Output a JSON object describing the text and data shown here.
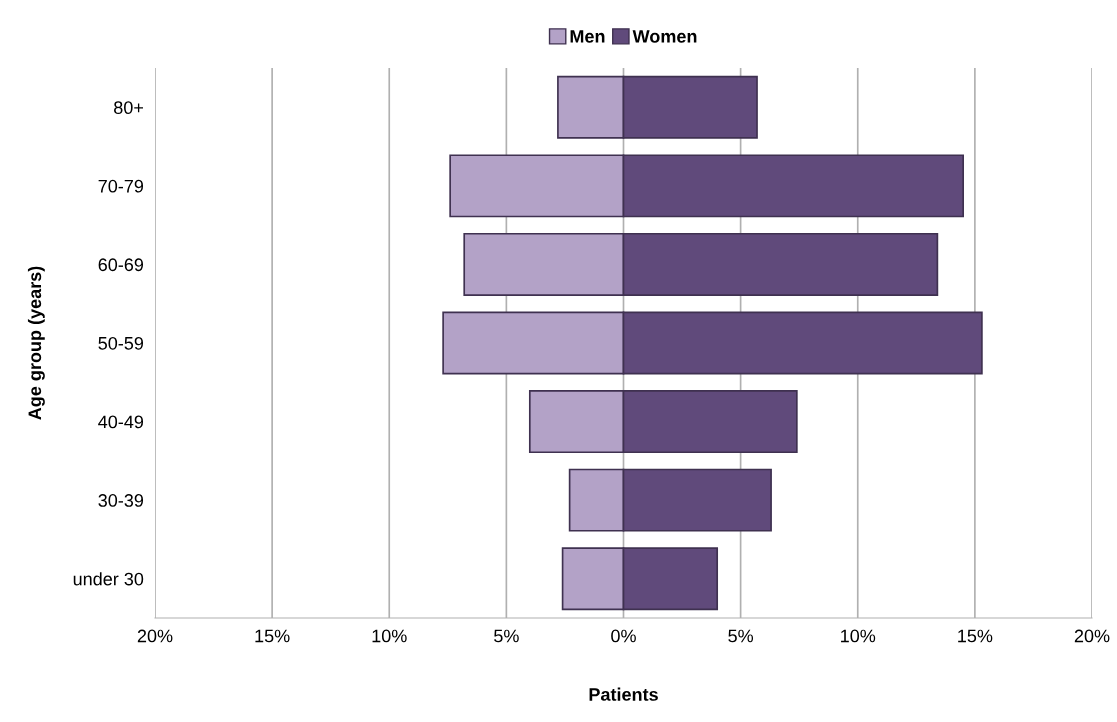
{
  "chart_data": {
    "type": "bar",
    "orientation": "horizontal",
    "stacked": true,
    "xlabel": "Patients",
    "ylabel": "Age group (years)",
    "categories": [
      "80+",
      "70-79",
      "60-69",
      "50-59",
      "40-49",
      "30-39",
      "under 30"
    ],
    "series": [
      {
        "name": "Men",
        "color": "#b3a2c7",
        "values": [
          -2.8,
          -7.4,
          -6.8,
          -7.7,
          -4.0,
          -2.3,
          -2.6
        ]
      },
      {
        "name": "Women",
        "color": "#604a7b",
        "values": [
          5.7,
          14.5,
          13.4,
          15.3,
          7.4,
          6.3,
          4.0
        ]
      }
    ],
    "xlim": [
      -20,
      20
    ],
    "xticks": [
      {
        "value": -20,
        "label": "20%"
      },
      {
        "value": -15,
        "label": "15%"
      },
      {
        "value": -10,
        "label": "10%"
      },
      {
        "value": -5,
        "label": "5%"
      },
      {
        "value": 0,
        "label": "0%"
      },
      {
        "value": 5,
        "label": "5%"
      },
      {
        "value": 10,
        "label": "10%"
      },
      {
        "value": 15,
        "label": "15%"
      },
      {
        "value": 20,
        "label": "20%"
      }
    ],
    "grid": "x",
    "legend": "top"
  }
}
